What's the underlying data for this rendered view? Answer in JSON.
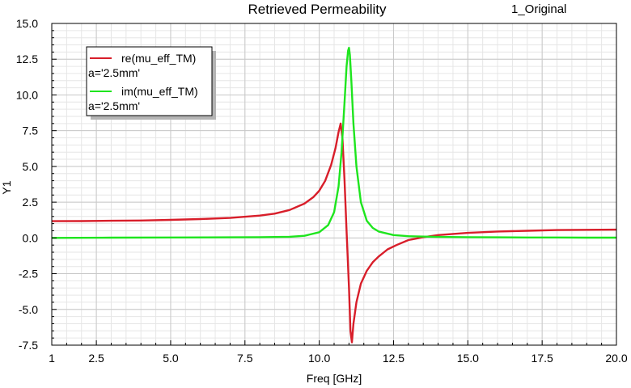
{
  "header": {
    "title": "Retrieved Permeability",
    "project_label": "1_Original"
  },
  "colors": {
    "re_series": "#d81e2a",
    "im_series": "#1ee51e",
    "grid_major": "#c8c8c8",
    "grid_minor": "#e6e6e6",
    "axis": "#000000",
    "background": "#ffffff"
  },
  "chart_data": {
    "type": "line",
    "xlabel": "Freq [GHz]",
    "ylabel": "Y1",
    "xlim": [
      1,
      20
    ],
    "ylim": [
      -7.5,
      15
    ],
    "x_ticks": [
      1,
      2.5,
      5,
      7.5,
      10,
      12.5,
      15,
      17.5,
      20
    ],
    "x_tick_labels": [
      "1",
      "2.5",
      "5.0",
      "7.5",
      "10.0",
      "12.5",
      "15.0",
      "17.5",
      "20.0"
    ],
    "y_ticks": [
      -7.5,
      -5,
      -2.5,
      0,
      2.5,
      5,
      7.5,
      10,
      12.5,
      15
    ],
    "y_tick_labels": [
      "-7.5",
      "-5.0",
      "-2.5",
      "0.0",
      "2.5",
      "5.0",
      "7.5",
      "10.0",
      "12.5",
      "15.0"
    ],
    "grid": true,
    "legend_position": "top-left",
    "series": [
      {
        "name": "re(mu_eff_TM)",
        "sub_label": "a='2.5mm'",
        "color": "#d81e2a",
        "x": [
          1,
          2,
          3,
          4,
          5,
          6,
          7,
          8,
          8.5,
          9,
          9.5,
          9.8,
          10.0,
          10.2,
          10.4,
          10.55,
          10.65,
          10.72,
          10.78,
          10.85,
          10.92,
          11.0,
          11.05,
          11.1,
          11.15,
          11.25,
          11.4,
          11.6,
          11.8,
          12.0,
          12.3,
          12.6,
          13.0,
          13.5,
          14.0,
          15.0,
          16.0,
          17.0,
          18.0,
          19.0,
          20.0
        ],
        "y": [
          1.17,
          1.18,
          1.2,
          1.22,
          1.26,
          1.32,
          1.4,
          1.56,
          1.7,
          1.95,
          2.4,
          2.85,
          3.3,
          4.0,
          5.1,
          6.3,
          7.4,
          8.0,
          7.0,
          4.0,
          0.5,
          -3.5,
          -6.5,
          -7.3,
          -6.0,
          -4.5,
          -3.2,
          -2.3,
          -1.7,
          -1.3,
          -0.8,
          -0.5,
          -0.15,
          0.05,
          0.2,
          0.35,
          0.45,
          0.5,
          0.55,
          0.57,
          0.58
        ]
      },
      {
        "name": "im(mu_eff_TM)",
        "sub_label": "a='2.5mm'",
        "color": "#1ee51e",
        "x": [
          1,
          3,
          5,
          7,
          8,
          9,
          9.5,
          10.0,
          10.3,
          10.5,
          10.65,
          10.75,
          10.85,
          10.92,
          10.97,
          11.0,
          11.03,
          11.08,
          11.15,
          11.25,
          11.4,
          11.6,
          11.8,
          12.0,
          12.5,
          13.0,
          14.0,
          15.0,
          16.0,
          17.0,
          18.0,
          19.0,
          20.0
        ],
        "y": [
          0.0,
          0.02,
          0.03,
          0.04,
          0.05,
          0.08,
          0.15,
          0.4,
          0.9,
          1.8,
          3.6,
          6.0,
          9.5,
          12.0,
          13.1,
          13.3,
          12.8,
          11.0,
          8.0,
          5.0,
          2.5,
          1.2,
          0.7,
          0.45,
          0.2,
          0.12,
          0.07,
          0.05,
          0.04,
          0.03,
          0.03,
          0.02,
          0.02
        ]
      }
    ]
  }
}
